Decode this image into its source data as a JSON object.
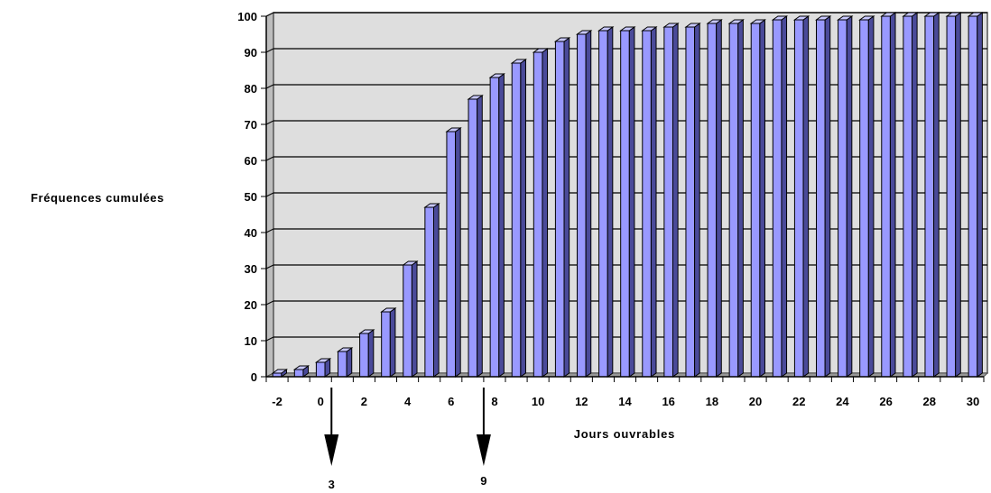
{
  "chart_data": {
    "type": "bar",
    "categories": [
      "-2",
      "-1",
      "0",
      "1",
      "2",
      "3",
      "4",
      "5",
      "6",
      "7",
      "8",
      "9",
      "10",
      "11",
      "12",
      "13",
      "14",
      "15",
      "16",
      "17",
      "18",
      "19",
      "20",
      "21",
      "22",
      "23",
      "24",
      "25",
      "26",
      "27",
      "28",
      "29",
      "30"
    ],
    "values": [
      1,
      2,
      4,
      7,
      12,
      18,
      31,
      47,
      68,
      77,
      83,
      87,
      90,
      93,
      95,
      96,
      96,
      96,
      97,
      97,
      98,
      98,
      98,
      99,
      99,
      99,
      99,
      99,
      100,
      100,
      100,
      100,
      100
    ],
    "xtick_labels": [
      "-2",
      "0",
      "2",
      "4",
      "6",
      "8",
      "10",
      "12",
      "14",
      "16",
      "18",
      "20",
      "22",
      "24",
      "26",
      "28",
      "30"
    ],
    "ytick_labels": [
      "0",
      "10",
      "20",
      "30",
      "40",
      "50",
      "60",
      "70",
      "80",
      "90",
      "100"
    ],
    "ylim": [
      0,
      100
    ],
    "ylabel": "Fréquences cumulées",
    "xlabel": "Jours ouvrables",
    "grid": true,
    "annotations": [
      {
        "label": "3",
        "x": "0"
      },
      {
        "label": "9",
        "x": "7"
      }
    ],
    "colors": {
      "bar_front": "#9999ff",
      "bar_side": "#4a4a99",
      "bar_top": "#c8c8ff",
      "plot_background": "#dedede",
      "floor": "#999999"
    }
  }
}
